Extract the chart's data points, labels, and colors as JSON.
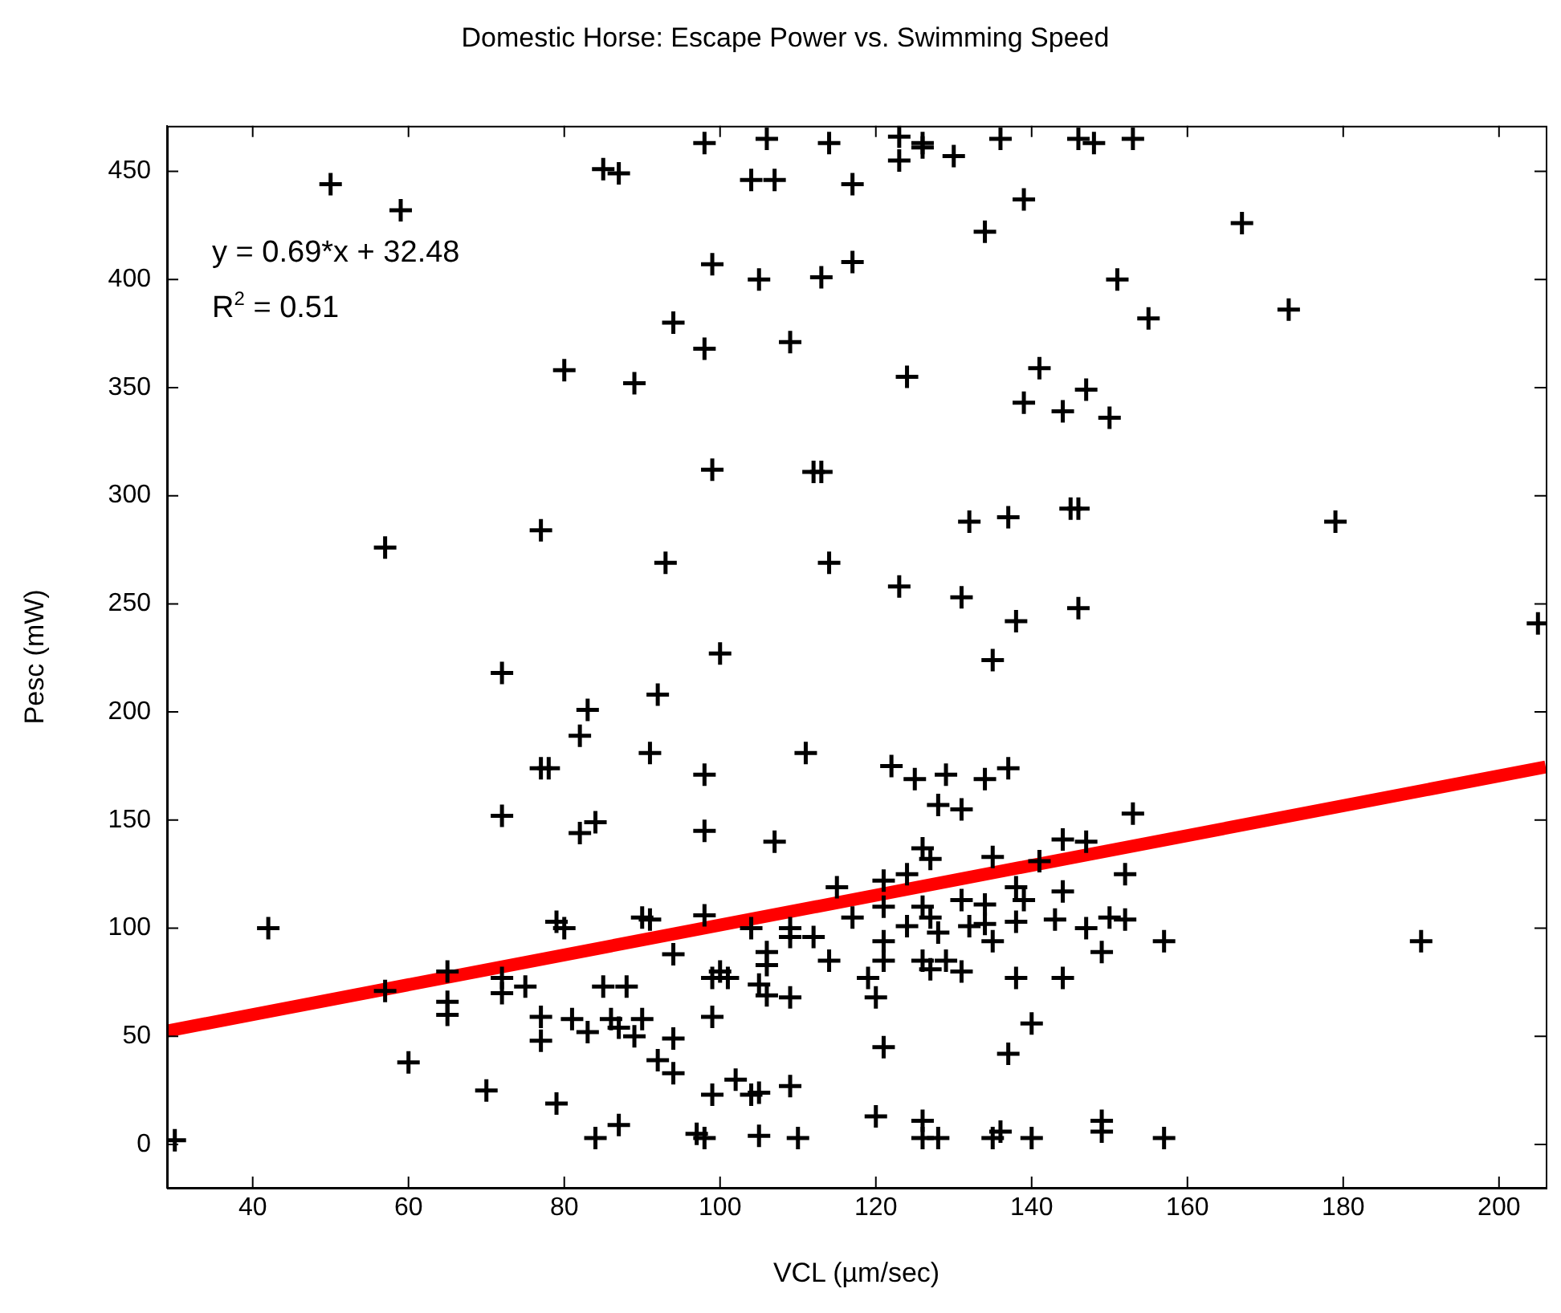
{
  "chart_data": {
    "type": "scatter",
    "title": "Domestic Horse: Escape Power vs. Swimming Speed",
    "xlabel": "VCL (µm/sec)",
    "ylabel": "Pesc (mW)",
    "xlim": [
      29,
      206
    ],
    "xticks": [
      40,
      60,
      80,
      100,
      120,
      140,
      160,
      180,
      200
    ],
    "ylim": [
      -20,
      471
    ],
    "yticks": [
      0,
      50,
      100,
      150,
      200,
      250,
      300,
      350,
      400,
      450
    ],
    "grid": false,
    "legend": false,
    "marker": "cross",
    "annotations": [
      "y = 0.69*x + 32.48",
      "R$^{2}$ = 0.51"
    ],
    "series": [
      {
        "color": "#000000",
        "x": [
          50,
          59,
          85,
          87,
          98,
          106,
          114,
          123,
          126,
          126,
          123,
          130,
          136,
          146,
          148,
          153,
          104,
          107,
          117,
          139,
          134,
          167,
          99,
          105,
          113,
          117,
          94,
          98,
          109,
          89,
          124,
          141,
          139,
          144,
          147,
          151,
          155,
          173,
          150,
          80,
          99,
          112,
          113,
          132,
          137,
          145,
          146,
          93,
          114,
          123,
          131,
          138,
          146,
          179,
          205,
          57,
          77,
          100,
          135,
          72,
          83,
          82,
          77,
          78,
          72,
          82,
          84,
          92,
          91,
          111,
          98,
          122,
          125,
          129,
          134,
          137,
          128,
          131,
          98,
          107,
          144,
          147,
          126,
          127,
          135,
          141,
          115,
          121,
          124,
          153,
          152,
          190,
          42,
          30,
          65,
          65,
          65,
          57,
          72,
          72,
          75,
          77,
          77,
          81,
          83,
          86,
          87,
          85,
          88,
          60,
          70,
          79,
          84,
          87,
          79,
          80,
          90,
          91,
          98,
          117,
          121,
          126,
          131,
          134,
          138,
          139,
          144,
          104,
          109,
          109,
          112,
          94,
          106,
          106,
          114,
          121,
          124,
          127,
          128,
          132,
          134,
          135,
          138,
          143,
          147,
          121,
          126,
          127,
          129,
          131,
          100,
          99,
          101,
          105,
          106,
          109,
          119,
          120,
          138,
          144,
          99,
          90,
          89,
          94,
          92,
          94,
          121,
          137,
          140,
          99,
          102,
          104,
          105,
          109,
          97,
          98,
          105,
          110,
          120,
          126,
          126,
          128,
          135,
          136,
          140,
          150,
          152,
          149,
          157,
          149,
          149,
          157
        ],
        "values": [
          444,
          432,
          451,
          449,
          463,
          465,
          463,
          466,
          463,
          461,
          455,
          457,
          465,
          465,
          463,
          465,
          446,
          446,
          444,
          437,
          422,
          426,
          407,
          400,
          401,
          408,
          380,
          368,
          371,
          352,
          355,
          359,
          343,
          339,
          349,
          400,
          382,
          386,
          336,
          358,
          312,
          311,
          311,
          288,
          290,
          294,
          294,
          269,
          269,
          258,
          253,
          242,
          248,
          288,
          241,
          276,
          284,
          227,
          224,
          218,
          201,
          189,
          174,
          174,
          152,
          144,
          149,
          208,
          181,
          181,
          171,
          175,
          169,
          171,
          169,
          174,
          157,
          155,
          145,
          140,
          141,
          140,
          137,
          132,
          133,
          131,
          119,
          122,
          125,
          153,
          125,
          94,
          100,
          2,
          80,
          66,
          60,
          71,
          77,
          70,
          73,
          59,
          48,
          58,
          52,
          58,
          54,
          73,
          73,
          38,
          25,
          19,
          3,
          9,
          103,
          100,
          105,
          104,
          106,
          105,
          110,
          110,
          113,
          111,
          119,
          113,
          117,
          100,
          100,
          96,
          96,
          88,
          89,
          83,
          85,
          94,
          101,
          105,
          98,
          101,
          102,
          94,
          103,
          104,
          100,
          85,
          85,
          81,
          85,
          80,
          80,
          77,
          77,
          74,
          69,
          68,
          77,
          68,
          77,
          77,
          59,
          58,
          50,
          49,
          39,
          33,
          45,
          42,
          56,
          23,
          30,
          23,
          24,
          27,
          5,
          3,
          4,
          3,
          13,
          11,
          3,
          3,
          3,
          6,
          3,
          105,
          104,
          89,
          94,
          11,
          6,
          3
        ]
      },
      {
        "type": "line",
        "color": "#ff0000",
        "marker": "none",
        "x": [
          29,
          206
        ],
        "values": [
          52.5,
          174.6
        ]
      }
    ]
  }
}
